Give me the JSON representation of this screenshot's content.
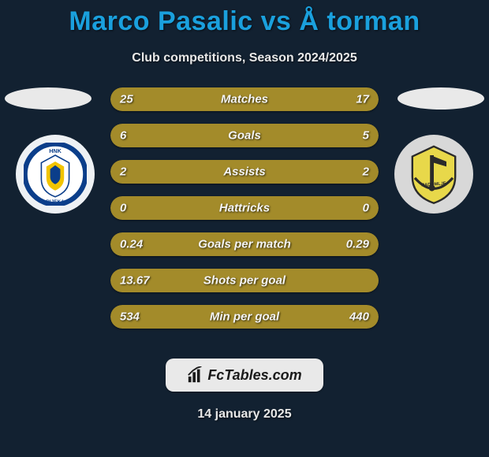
{
  "title": "Marco Pasalic vs Å torman",
  "subtitle": "Club competitions, Season 2024/2025",
  "date": "14 january 2025",
  "footer_logo_text": "FcTables.com",
  "colors": {
    "left_bar": "#a38b2a",
    "right_bar": "#a38b2a",
    "title": "#1aa0dd",
    "text": "#e8e8e8",
    "background": "#122131"
  },
  "badge_left": {
    "label": "HNK RIJEKA",
    "ring_color": "#0b3e8a",
    "inner_color": "#ffffff",
    "accent1": "#f2c400",
    "accent2": "#0b3e8a"
  },
  "badge_right": {
    "label": "RADOMLJE",
    "ring_color": "#3a3a3a",
    "inner_color": "#e8d84a",
    "accent1": "#2a2a2a"
  },
  "rows": [
    {
      "label": "Matches",
      "left": "25",
      "right": "17",
      "left_pct": 60,
      "right_pct": 40
    },
    {
      "label": "Goals",
      "left": "6",
      "right": "5",
      "left_pct": 55,
      "right_pct": 45
    },
    {
      "label": "Assists",
      "left": "2",
      "right": "2",
      "left_pct": 50,
      "right_pct": 50
    },
    {
      "label": "Hattricks",
      "left": "0",
      "right": "0",
      "left_pct": 50,
      "right_pct": 50
    },
    {
      "label": "Goals per match",
      "left": "0.24",
      "right": "0.29",
      "left_pct": 45,
      "right_pct": 55
    },
    {
      "label": "Shots per goal",
      "left": "13.67",
      "right": "",
      "left_pct": 100,
      "right_pct": 0
    },
    {
      "label": "Min per goal",
      "left": "534",
      "right": "440",
      "left_pct": 55,
      "right_pct": 45
    }
  ]
}
